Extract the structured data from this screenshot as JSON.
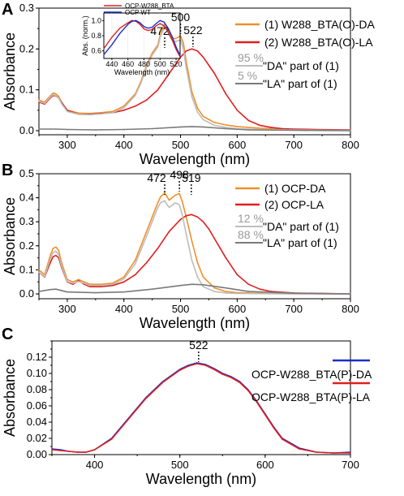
{
  "colors": {
    "orange": "#f0902a",
    "red": "#e01f1f",
    "lightgray": "#bdbdbd",
    "darkgray": "#7a7a7a",
    "blue": "#1a2fc8"
  },
  "chart_data": [
    {
      "panel": "A",
      "type": "line",
      "xlabel": "Wavelength (nm)",
      "ylabel": "Absorbance",
      "xlim": [
        250,
        800
      ],
      "ylim": [
        -0.01,
        0.3
      ],
      "xticks": [
        300,
        400,
        500,
        600,
        700,
        800
      ],
      "yticks": [
        0.0,
        0.1,
        0.2,
        0.3
      ],
      "peaks": [
        472,
        500,
        522
      ],
      "legend": [
        {
          "pct": "",
          "label": "(1) W288_BTA(O)-DA"
        },
        {
          "pct": "",
          "label": "(2) W288_BTA(O)-LA"
        },
        {
          "pct": "95 %",
          "label": "\"DA\" part of (1)"
        },
        {
          "pct": "5 %",
          "label": "\"LA\" part of (1)"
        }
      ],
      "series": [
        {
          "name": "(1) W288_BTA(O)-DA",
          "color": "orange",
          "x": [
            250,
            260,
            270,
            275,
            280,
            285,
            290,
            300,
            320,
            340,
            350,
            360,
            380,
            400,
            420,
            430,
            440,
            450,
            460,
            465,
            470,
            472,
            476,
            480,
            485,
            490,
            495,
            500,
            505,
            510,
            520,
            530,
            540,
            560,
            580,
            600,
            640,
            700,
            760,
            800
          ],
          "y": [
            0.075,
            0.07,
            0.085,
            0.092,
            0.09,
            0.084,
            0.07,
            0.05,
            0.043,
            0.042,
            0.043,
            0.044,
            0.047,
            0.06,
            0.09,
            0.12,
            0.16,
            0.19,
            0.21,
            0.24,
            0.255,
            0.262,
            0.252,
            0.24,
            0.228,
            0.225,
            0.228,
            0.232,
            0.215,
            0.17,
            0.095,
            0.055,
            0.035,
            0.02,
            0.014,
            0.01,
            0.006,
            0.003,
            0.002,
            0.002
          ]
        },
        {
          "name": "(2) W288_BTA(O)-LA",
          "color": "red",
          "x": [
            250,
            260,
            270,
            275,
            280,
            285,
            290,
            300,
            320,
            340,
            360,
            380,
            400,
            420,
            440,
            460,
            480,
            500,
            510,
            520,
            530,
            540,
            550,
            560,
            570,
            580,
            600,
            620,
            640,
            660,
            680,
            700,
            740,
            800
          ],
          "y": [
            0.07,
            0.065,
            0.08,
            0.086,
            0.085,
            0.08,
            0.068,
            0.05,
            0.04,
            0.04,
            0.042,
            0.044,
            0.05,
            0.06,
            0.075,
            0.1,
            0.14,
            0.18,
            0.195,
            0.2,
            0.195,
            0.18,
            0.16,
            0.14,
            0.115,
            0.09,
            0.05,
            0.025,
            0.013,
            0.008,
            0.005,
            0.004,
            0.003,
            0.002
          ]
        },
        {
          "name": "\"DA\" part of (1)",
          "color": "lightgray",
          "x": [
            250,
            260,
            270,
            275,
            280,
            285,
            290,
            300,
            320,
            340,
            350,
            360,
            380,
            400,
            420,
            430,
            440,
            450,
            460,
            465,
            470,
            472,
            476,
            480,
            485,
            490,
            495,
            500,
            505,
            510,
            520,
            530,
            540,
            560,
            580,
            600,
            640,
            700,
            760,
            800
          ],
          "y": [
            0.072,
            0.067,
            0.082,
            0.088,
            0.086,
            0.08,
            0.066,
            0.047,
            0.04,
            0.039,
            0.04,
            0.041,
            0.044,
            0.056,
            0.086,
            0.116,
            0.155,
            0.185,
            0.205,
            0.232,
            0.248,
            0.256,
            0.246,
            0.234,
            0.222,
            0.218,
            0.22,
            0.222,
            0.2,
            0.155,
            0.083,
            0.045,
            0.027,
            0.013,
            0.008,
            0.005,
            0.003,
            0.002,
            0.001,
            0.001
          ]
        },
        {
          "name": "\"LA\" part of (1)",
          "color": "darkgray",
          "x": [
            250,
            270,
            280,
            300,
            350,
            400,
            450,
            500,
            520,
            540,
            580,
            620,
            700,
            800
          ],
          "y": [
            0.004,
            0.004,
            0.004,
            0.003,
            0.002,
            0.003,
            0.005,
            0.009,
            0.01,
            0.009,
            0.005,
            0.002,
            0.001,
            0.0
          ]
        }
      ],
      "inset": {
        "ylabel": "Abs. (norm.)",
        "xlabel": "Wavelength (nm)",
        "xlim": [
          430,
          525
        ],
        "ylim": [
          0.5,
          1.1
        ],
        "xticks": [
          440,
          460,
          480,
          500,
          520
        ],
        "yticks": [
          0.6,
          0.8,
          1.0
        ],
        "series": [
          {
            "name": "OCP-W288_BTA",
            "color": "red",
            "x": [
              430,
              440,
              450,
              460,
              465,
              470,
              475,
              480,
              485,
              490,
              495,
              500,
              505,
              510,
              515,
              520,
              525
            ],
            "y": [
              0.63,
              0.78,
              0.9,
              0.97,
              1.0,
              0.99,
              0.95,
              0.89,
              0.87,
              0.88,
              0.93,
              0.96,
              0.93,
              0.85,
              0.75,
              0.62,
              0.52
            ]
          },
          {
            "name": "OCP WT",
            "color": "blue",
            "x": [
              430,
              440,
              450,
              460,
              465,
              470,
              475,
              480,
              485,
              490,
              495,
              500,
              505,
              510,
              515,
              520,
              525
            ],
            "y": [
              0.55,
              0.68,
              0.83,
              0.95,
              0.99,
              1.0,
              0.97,
              0.92,
              0.9,
              0.91,
              0.96,
              1.0,
              0.98,
              0.9,
              0.79,
              0.65,
              0.54
            ]
          }
        ]
      }
    },
    {
      "panel": "B",
      "type": "line",
      "xlabel": "Wavelength (nm)",
      "ylabel": "Absorbance",
      "xlim": [
        250,
        800
      ],
      "ylim": [
        -0.02,
        0.5
      ],
      "xticks": [
        300,
        400,
        500,
        600,
        700,
        800
      ],
      "yticks": [
        0.0,
        0.1,
        0.2,
        0.3,
        0.4,
        0.5
      ],
      "peaks": [
        472,
        498,
        519
      ],
      "legend": [
        {
          "pct": "",
          "label": "(1) OCP-DA"
        },
        {
          "pct": "",
          "label": "(2) OCP-LA"
        },
        {
          "pct": "12 %",
          "label": "\"DA\" part of (1)"
        },
        {
          "pct": "88 %",
          "label": "\"LA\" part of (1)"
        }
      ],
      "series": [
        {
          "name": "(1) OCP-DA",
          "color": "orange",
          "x": [
            250,
            260,
            270,
            275,
            280,
            285,
            290,
            300,
            310,
            320,
            330,
            340,
            360,
            380,
            400,
            420,
            440,
            450,
            460,
            465,
            470,
            472,
            476,
            480,
            485,
            490,
            495,
            498,
            503,
            510,
            520,
            530,
            540,
            560,
            580,
            600,
            650,
            700,
            800
          ],
          "y": [
            0.1,
            0.08,
            0.16,
            0.19,
            0.195,
            0.18,
            0.13,
            0.06,
            0.05,
            0.06,
            0.05,
            0.04,
            0.04,
            0.045,
            0.07,
            0.14,
            0.26,
            0.32,
            0.38,
            0.405,
            0.415,
            0.42,
            0.405,
            0.39,
            0.4,
            0.41,
            0.415,
            0.418,
            0.385,
            0.32,
            0.22,
            0.13,
            0.07,
            0.025,
            0.01,
            0.005,
            0.002,
            0.001,
            0.0
          ]
        },
        {
          "name": "(2) OCP-LA",
          "color": "red",
          "x": [
            250,
            260,
            270,
            275,
            280,
            285,
            290,
            300,
            310,
            320,
            330,
            340,
            360,
            380,
            400,
            420,
            440,
            460,
            480,
            500,
            510,
            519,
            530,
            540,
            550,
            560,
            570,
            580,
            600,
            620,
            640,
            660,
            700,
            800
          ],
          "y": [
            0.09,
            0.07,
            0.13,
            0.155,
            0.16,
            0.15,
            0.11,
            0.05,
            0.04,
            0.055,
            0.04,
            0.03,
            0.03,
            0.035,
            0.05,
            0.08,
            0.13,
            0.19,
            0.26,
            0.31,
            0.325,
            0.33,
            0.32,
            0.3,
            0.27,
            0.23,
            0.19,
            0.15,
            0.08,
            0.04,
            0.02,
            0.01,
            0.004,
            0.0
          ]
        },
        {
          "name": "\"DA\" part of (1)",
          "color": "lightgray",
          "x": [
            250,
            260,
            270,
            275,
            280,
            285,
            290,
            300,
            310,
            320,
            330,
            340,
            360,
            380,
            400,
            420,
            440,
            450,
            460,
            465,
            470,
            472,
            476,
            480,
            485,
            490,
            495,
            498,
            503,
            510,
            520,
            530,
            540,
            560,
            580,
            600,
            650,
            700,
            800
          ],
          "y": [
            0.09,
            0.072,
            0.145,
            0.172,
            0.178,
            0.162,
            0.116,
            0.052,
            0.044,
            0.052,
            0.044,
            0.035,
            0.035,
            0.04,
            0.062,
            0.125,
            0.24,
            0.3,
            0.36,
            0.38,
            0.385,
            0.388,
            0.372,
            0.36,
            0.368,
            0.378,
            0.375,
            0.37,
            0.33,
            0.25,
            0.14,
            0.07,
            0.03,
            0.01,
            0.004,
            0.002,
            0.001,
            0.0,
            0.0
          ]
        },
        {
          "name": "\"LA\" part of (1)",
          "color": "darkgray",
          "x": [
            250,
            270,
            280,
            300,
            350,
            400,
            450,
            500,
            520,
            540,
            580,
            620,
            700,
            800
          ],
          "y": [
            0.01,
            0.018,
            0.02,
            0.008,
            0.005,
            0.008,
            0.02,
            0.035,
            0.04,
            0.038,
            0.025,
            0.01,
            0.003,
            0.0
          ]
        }
      ]
    },
    {
      "panel": "C",
      "type": "line",
      "xlabel": "Wavelength (nm)",
      "ylabel": "Absorbance",
      "xlim": [
        350,
        700
      ],
      "ylim": [
        0.0,
        0.14
      ],
      "xticks": [
        400,
        500,
        600,
        700
      ],
      "yticks": [
        0.0,
        0.02,
        0.04,
        0.06,
        0.08,
        0.1,
        0.12
      ],
      "peaks": [
        522
      ],
      "legend": [
        {
          "pct": "",
          "label": "OCP-W288_BTA(P)-DA"
        },
        {
          "pct": "",
          "label": "OCP-W288_BTA(P)-LA"
        }
      ],
      "series": [
        {
          "name": "OCP-W288_BTA(P)-DA",
          "color": "blue",
          "x": [
            350,
            360,
            370,
            380,
            390,
            400,
            420,
            440,
            460,
            480,
            500,
            510,
            520,
            530,
            540,
            550,
            560,
            570,
            580,
            590,
            600,
            610,
            620,
            640,
            660,
            680,
            700
          ],
          "y": [
            0.007,
            0.006,
            0.004,
            0.003,
            0.003,
            0.006,
            0.02,
            0.045,
            0.07,
            0.09,
            0.105,
            0.11,
            0.113,
            0.111,
            0.106,
            0.1,
            0.096,
            0.09,
            0.08,
            0.066,
            0.05,
            0.034,
            0.02,
            0.008,
            0.003,
            0.002,
            0.003
          ]
        },
        {
          "name": "OCP-W288_BTA(P)-LA",
          "color": "red",
          "x": [
            350,
            360,
            370,
            380,
            390,
            400,
            420,
            440,
            460,
            480,
            500,
            510,
            520,
            530,
            540,
            550,
            560,
            570,
            580,
            590,
            600,
            610,
            620,
            640,
            660,
            680,
            700
          ],
          "y": [
            0.006,
            0.005,
            0.004,
            0.003,
            0.003,
            0.006,
            0.019,
            0.044,
            0.069,
            0.089,
            0.104,
            0.109,
            0.112,
            0.11,
            0.105,
            0.099,
            0.095,
            0.089,
            0.079,
            0.065,
            0.049,
            0.033,
            0.019,
            0.007,
            0.003,
            0.002,
            0.002
          ]
        }
      ]
    }
  ]
}
